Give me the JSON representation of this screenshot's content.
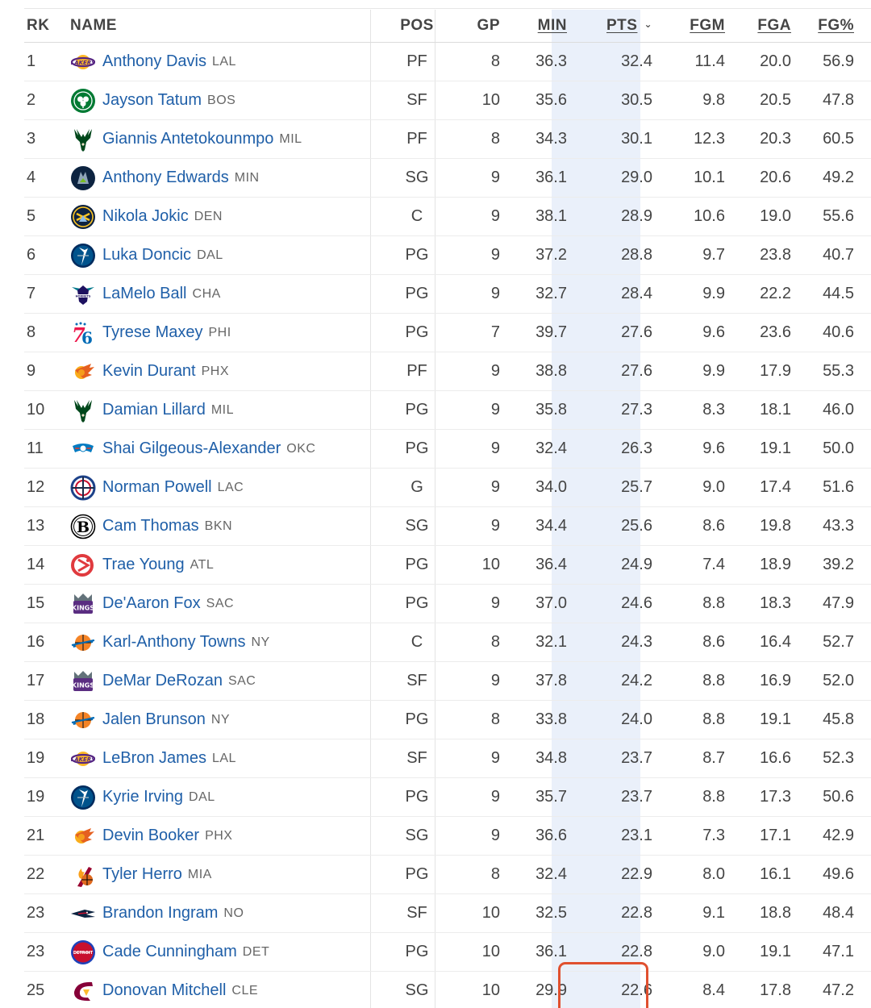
{
  "table": {
    "columns": {
      "rk": "RK",
      "name": "NAME",
      "pos": "POS",
      "gp": "GP",
      "min": "MIN",
      "pts": "PTS",
      "fgm": "FGM",
      "fga": "FGA",
      "fgp": "FG%"
    },
    "sorted_column": "pts",
    "sort_direction_icon": "chevron-down-icon",
    "rows": [
      {
        "rk": "1",
        "player": "Anthony Davis",
        "team": "LAL",
        "pos": "PF",
        "gp": "8",
        "min": "36.3",
        "pts": "32.4",
        "fgm": "11.4",
        "fga": "20.0",
        "fgp": "56.9"
      },
      {
        "rk": "2",
        "player": "Jayson Tatum",
        "team": "BOS",
        "pos": "SF",
        "gp": "10",
        "min": "35.6",
        "pts": "30.5",
        "fgm": "9.8",
        "fga": "20.5",
        "fgp": "47.8"
      },
      {
        "rk": "3",
        "player": "Giannis Antetokounmpo",
        "team": "MIL",
        "pos": "PF",
        "gp": "8",
        "min": "34.3",
        "pts": "30.1",
        "fgm": "12.3",
        "fga": "20.3",
        "fgp": "60.5"
      },
      {
        "rk": "4",
        "player": "Anthony Edwards",
        "team": "MIN",
        "pos": "SG",
        "gp": "9",
        "min": "36.1",
        "pts": "29.0",
        "fgm": "10.1",
        "fga": "20.6",
        "fgp": "49.2"
      },
      {
        "rk": "5",
        "player": "Nikola Jokic",
        "team": "DEN",
        "pos": "C",
        "gp": "9",
        "min": "38.1",
        "pts": "28.9",
        "fgm": "10.6",
        "fga": "19.0",
        "fgp": "55.6"
      },
      {
        "rk": "6",
        "player": "Luka Doncic",
        "team": "DAL",
        "pos": "PG",
        "gp": "9",
        "min": "37.2",
        "pts": "28.8",
        "fgm": "9.7",
        "fga": "23.8",
        "fgp": "40.7"
      },
      {
        "rk": "7",
        "player": "LaMelo Ball",
        "team": "CHA",
        "pos": "PG",
        "gp": "9",
        "min": "32.7",
        "pts": "28.4",
        "fgm": "9.9",
        "fga": "22.2",
        "fgp": "44.5"
      },
      {
        "rk": "8",
        "player": "Tyrese Maxey",
        "team": "PHI",
        "pos": "PG",
        "gp": "7",
        "min": "39.7",
        "pts": "27.6",
        "fgm": "9.6",
        "fga": "23.6",
        "fgp": "40.6"
      },
      {
        "rk": "9",
        "player": "Kevin Durant",
        "team": "PHX",
        "pos": "PF",
        "gp": "9",
        "min": "38.8",
        "pts": "27.6",
        "fgm": "9.9",
        "fga": "17.9",
        "fgp": "55.3"
      },
      {
        "rk": "10",
        "player": "Damian Lillard",
        "team": "MIL",
        "pos": "PG",
        "gp": "9",
        "min": "35.8",
        "pts": "27.3",
        "fgm": "8.3",
        "fga": "18.1",
        "fgp": "46.0"
      },
      {
        "rk": "11",
        "player": "Shai Gilgeous-Alexander",
        "team": "OKC",
        "pos": "PG",
        "gp": "9",
        "min": "32.4",
        "pts": "26.3",
        "fgm": "9.6",
        "fga": "19.1",
        "fgp": "50.0"
      },
      {
        "rk": "12",
        "player": "Norman Powell",
        "team": "LAC",
        "pos": "G",
        "gp": "9",
        "min": "34.0",
        "pts": "25.7",
        "fgm": "9.0",
        "fga": "17.4",
        "fgp": "51.6"
      },
      {
        "rk": "13",
        "player": "Cam Thomas",
        "team": "BKN",
        "pos": "SG",
        "gp": "9",
        "min": "34.4",
        "pts": "25.6",
        "fgm": "8.6",
        "fga": "19.8",
        "fgp": "43.3"
      },
      {
        "rk": "14",
        "player": "Trae Young",
        "team": "ATL",
        "pos": "PG",
        "gp": "10",
        "min": "36.4",
        "pts": "24.9",
        "fgm": "7.4",
        "fga": "18.9",
        "fgp": "39.2"
      },
      {
        "rk": "15",
        "player": "De'Aaron Fox",
        "team": "SAC",
        "pos": "PG",
        "gp": "9",
        "min": "37.0",
        "pts": "24.6",
        "fgm": "8.8",
        "fga": "18.3",
        "fgp": "47.9"
      },
      {
        "rk": "16",
        "player": "Karl-Anthony Towns",
        "team": "NY",
        "pos": "C",
        "gp": "8",
        "min": "32.1",
        "pts": "24.3",
        "fgm": "8.6",
        "fga": "16.4",
        "fgp": "52.7"
      },
      {
        "rk": "17",
        "player": "DeMar DeRozan",
        "team": "SAC",
        "pos": "SF",
        "gp": "9",
        "min": "37.8",
        "pts": "24.2",
        "fgm": "8.8",
        "fga": "16.9",
        "fgp": "52.0"
      },
      {
        "rk": "18",
        "player": "Jalen Brunson",
        "team": "NY",
        "pos": "PG",
        "gp": "8",
        "min": "33.8",
        "pts": "24.0",
        "fgm": "8.8",
        "fga": "19.1",
        "fgp": "45.8"
      },
      {
        "rk": "19",
        "player": "LeBron James",
        "team": "LAL",
        "pos": "SF",
        "gp": "9",
        "min": "34.8",
        "pts": "23.7",
        "fgm": "8.7",
        "fga": "16.6",
        "fgp": "52.3"
      },
      {
        "rk": "19",
        "player": "Kyrie Irving",
        "team": "DAL",
        "pos": "PG",
        "gp": "9",
        "min": "35.7",
        "pts": "23.7",
        "fgm": "8.8",
        "fga": "17.3",
        "fgp": "50.6"
      },
      {
        "rk": "21",
        "player": "Devin Booker",
        "team": "PHX",
        "pos": "SG",
        "gp": "9",
        "min": "36.6",
        "pts": "23.1",
        "fgm": "7.3",
        "fga": "17.1",
        "fgp": "42.9"
      },
      {
        "rk": "22",
        "player": "Tyler Herro",
        "team": "MIA",
        "pos": "PG",
        "gp": "8",
        "min": "32.4",
        "pts": "22.9",
        "fgm": "8.0",
        "fga": "16.1",
        "fgp": "49.6"
      },
      {
        "rk": "23",
        "player": "Brandon Ingram",
        "team": "NO",
        "pos": "SF",
        "gp": "10",
        "min": "32.5",
        "pts": "22.8",
        "fgm": "9.1",
        "fga": "18.8",
        "fgp": "48.4"
      },
      {
        "rk": "23",
        "player": "Cade Cunningham",
        "team": "DET",
        "pos": "PG",
        "gp": "10",
        "min": "36.1",
        "pts": "22.8",
        "fgm": "9.0",
        "fga": "19.1",
        "fgp": "47.1"
      },
      {
        "rk": "25",
        "player": "Donovan Mitchell",
        "team": "CLE",
        "pos": "SG",
        "gp": "10",
        "min": "29.9",
        "pts": "22.6",
        "fgm": "8.4",
        "fga": "17.8",
        "fgp": "47.2"
      }
    ]
  },
  "team_logos": {
    "LAL": {
      "icon": "lakers-logo-icon",
      "color": "#552583",
      "accent": "#FDB927"
    },
    "BOS": {
      "icon": "celtics-logo-icon",
      "color": "#007A33",
      "accent": "#ffffff"
    },
    "MIL": {
      "icon": "bucks-logo-icon",
      "color": "#00471B",
      "accent": "#EEE1C6"
    },
    "MIN": {
      "icon": "timberwolves-logo-icon",
      "color": "#0C2340",
      "accent": "#78BE20"
    },
    "DEN": {
      "icon": "nuggets-logo-icon",
      "color": "#0E2240",
      "accent": "#FEC524"
    },
    "DAL": {
      "icon": "mavericks-logo-icon",
      "color": "#00538C",
      "accent": "#B8C4CA"
    },
    "CHA": {
      "icon": "hornets-logo-icon",
      "color": "#1D1160",
      "accent": "#00788C"
    },
    "PHI": {
      "icon": "76ers-logo-icon",
      "color": "#006BB6",
      "accent": "#ED174C"
    },
    "PHX": {
      "icon": "suns-logo-icon",
      "color": "#E56020",
      "accent": "#F9AD1B"
    },
    "OKC": {
      "icon": "thunder-logo-icon",
      "color": "#007AC1",
      "accent": "#EF3B24"
    },
    "LAC": {
      "icon": "clippers-logo-icon",
      "color": "#1D428A",
      "accent": "#C8102E"
    },
    "BKN": {
      "icon": "nets-logo-icon",
      "color": "#000000",
      "accent": "#ffffff"
    },
    "ATL": {
      "icon": "hawks-logo-icon",
      "color": "#E03A3E",
      "accent": "#ffffff"
    },
    "SAC": {
      "icon": "kings-logo-icon",
      "color": "#5A2D81",
      "accent": "#63727A"
    },
    "NY": {
      "icon": "knicks-logo-icon",
      "color": "#F58426",
      "accent": "#006BB6"
    },
    "MIA": {
      "icon": "heat-logo-icon",
      "color": "#98002E",
      "accent": "#F9A01B"
    },
    "NO": {
      "icon": "pelicans-logo-icon",
      "color": "#0C2340",
      "accent": "#C8102E"
    },
    "DET": {
      "icon": "pistons-logo-icon",
      "color": "#C8102E",
      "accent": "#1D42BA"
    },
    "CLE": {
      "icon": "cavaliers-logo-icon",
      "color": "#860038",
      "accent": "#FDBB30"
    }
  },
  "colors": {
    "player_link": "#1f5fa8",
    "sorted_column_bg": "#eaf0fa",
    "highlight_box": "#e0502f"
  }
}
